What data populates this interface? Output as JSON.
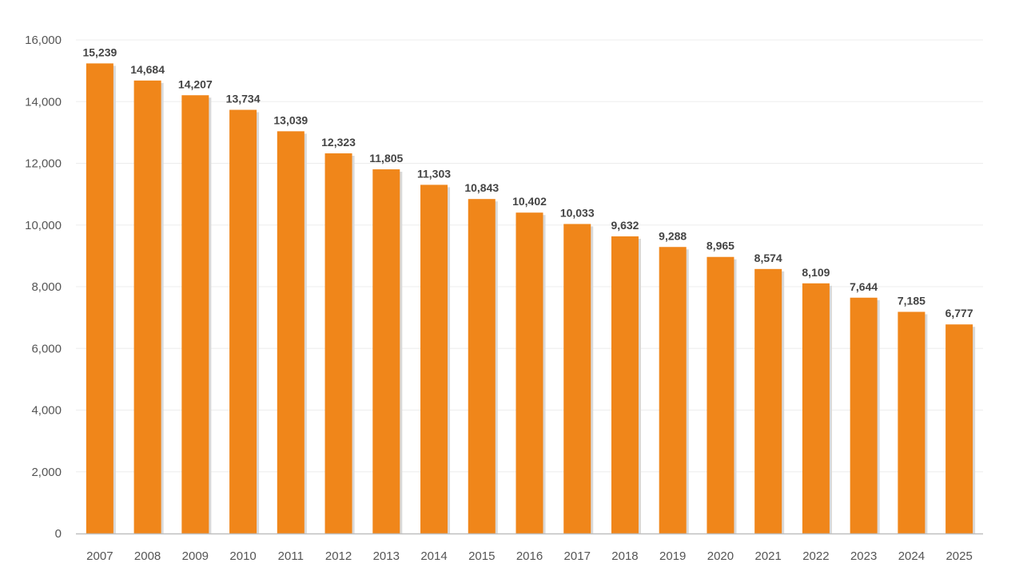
{
  "chart_data": {
    "type": "bar",
    "title": "",
    "xlabel": "",
    "ylabel": "",
    "categories": [
      "2007",
      "2008",
      "2009",
      "2010",
      "2011",
      "2012",
      "2013",
      "2014",
      "2015",
      "2016",
      "2017",
      "2018",
      "2019",
      "2020",
      "2021",
      "2022",
      "2023",
      "2024",
      "2025"
    ],
    "values": [
      15239,
      14684,
      14207,
      13734,
      13039,
      12323,
      11805,
      11303,
      10843,
      10402,
      10033,
      9632,
      9288,
      8965,
      8574,
      8109,
      7644,
      7185,
      6777
    ],
    "data_labels": [
      "15,239",
      "14,684",
      "14,207",
      "13,734",
      "13,039",
      "12,323",
      "11,805",
      "11,303",
      "10,843",
      "10,402",
      "10,033",
      "9,632",
      "9,288",
      "8,965",
      "8,574",
      "8,109",
      "7,644",
      "7,185",
      "6,777"
    ],
    "ylim": [
      0,
      16000
    ],
    "y_ticks": [
      0,
      2000,
      4000,
      6000,
      8000,
      10000,
      12000,
      14000,
      16000
    ],
    "y_tick_labels": [
      "0",
      "2,000",
      "4,000",
      "6,000",
      "8,000",
      "10,000",
      "12,000",
      "14,000",
      "16,000"
    ],
    "grid": true,
    "legend": "none",
    "colors": {
      "bar": "#F0861A",
      "bar_shadow": "#D9D9D9",
      "grid": "#EDEDED",
      "axis": "#BFBFBF"
    }
  }
}
